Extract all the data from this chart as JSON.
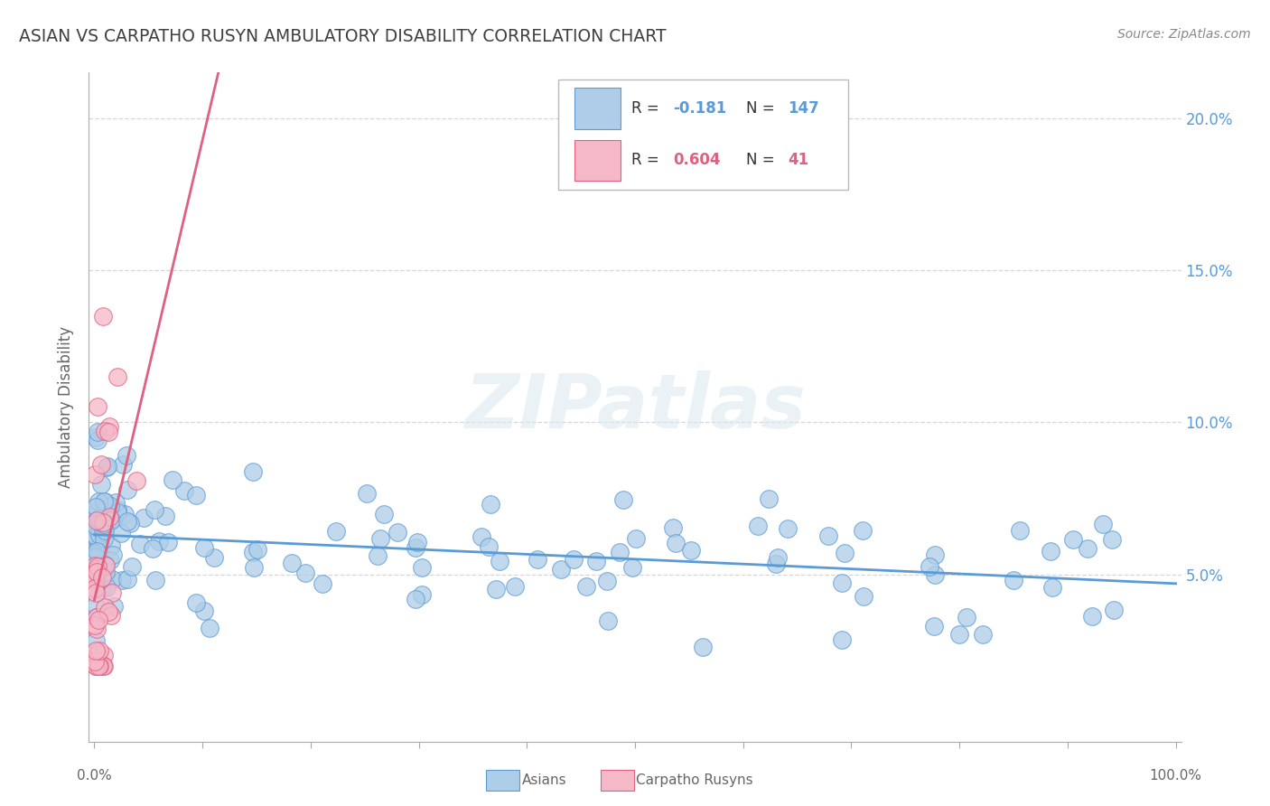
{
  "title": "ASIAN VS CARPATHO RUSYN AMBULATORY DISABILITY CORRELATION CHART",
  "source": "Source: ZipAtlas.com",
  "ylabel": "Ambulatory Disability",
  "asian_R": -0.181,
  "asian_N": 147,
  "rusyn_R": 0.604,
  "rusyn_N": 41,
  "asian_color": "#aecde8",
  "asian_edge_color": "#5b9bd5",
  "rusyn_color": "#f5b8c8",
  "rusyn_edge_color": "#e06080",
  "asian_line_color": "#5b9bd5",
  "rusyn_line_color": "#e06080",
  "right_ytick_vals": [
    0.05,
    0.1,
    0.15,
    0.2
  ],
  "right_yticklabels": [
    "5.0%",
    "10.0%",
    "15.0%",
    "20.0%"
  ],
  "watermark": "ZIPatlas",
  "background_color": "#ffffff",
  "grid_color": "#cccccc",
  "title_color": "#404040",
  "source_color": "#888888",
  "label_color": "#666666"
}
